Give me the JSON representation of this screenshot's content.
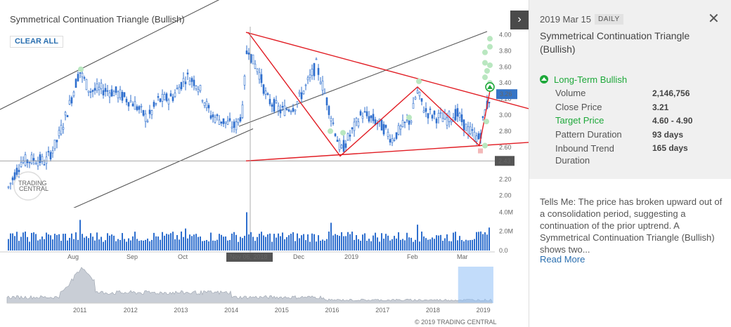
{
  "header": {
    "title": "Symmetrical Continuation Triangle (Bullish)",
    "clear_all": "CLEAR ALL",
    "toggle_icon": "chevron-right-icon"
  },
  "chart_data": {
    "type": "candlestick",
    "price_axis": {
      "ticks": [
        "4.00",
        "3.80",
        "3.60",
        "3.40",
        "3.20",
        "3.00",
        "2.80",
        "2.60",
        "2.40",
        "2.20",
        "2.00"
      ],
      "ylim": [
        1.9,
        4.1
      ]
    },
    "volume_axis": {
      "ticks": [
        "4.0M",
        "2.0M",
        "0.0"
      ],
      "ylim": [
        0,
        4400000
      ]
    },
    "x_ticks": [
      "Aug",
      "Sep",
      "Oct",
      "Nov",
      "Dec",
      "2019",
      "Feb",
      "Mar"
    ],
    "crosshair": {
      "date_label": "Nov 06, 2018",
      "price_label": "2.43",
      "price": 2.43
    },
    "last_price_label": "3.26",
    "last_price": 3.26,
    "triangle_lines": [
      {
        "name": "upper",
        "from": [
          350,
          4.03
        ],
        "to": [
          752,
          3.08
        ]
      },
      {
        "name": "lower",
        "from": [
          350,
          2.43
        ],
        "to": [
          752,
          2.66
        ]
      }
    ],
    "zigzag_prices": [
      4.03,
      2.49,
      3.35,
      2.62,
      3.3
    ],
    "channel_lines": [
      {
        "name": "channel-upper",
        "from": [
          0,
          3.07
        ],
        "to": [
          395,
          4.8
        ]
      },
      {
        "name": "channel-middle",
        "from": [
          340,
          2.86
        ],
        "to": [
          693,
          4.04
        ]
      },
      {
        "name": "channel-lower",
        "from": [
          0,
          1.44
        ],
        "to": [
          360,
          2.83
        ]
      }
    ],
    "navigator": {
      "ticks": [
        "2011",
        "2012",
        "2013",
        "2014",
        "2015",
        "2016",
        "2017",
        "2018",
        "2019"
      ],
      "highlight": [
        2018.5,
        2019.2
      ]
    }
  },
  "copyright": "© 2019 TRADING CENTRAL",
  "watermark": "TRADING CENTRAL",
  "panel": {
    "date": "2019 Mar 15",
    "interval": "DAILY",
    "title": "Symmetrical Continuation Triangle (Bullish)",
    "signal": "Long-Term Bullish",
    "signal_color": "#1ea83a",
    "rows": [
      {
        "label": "Volume",
        "value": "2,146,756"
      },
      {
        "label": "Close Price",
        "value": "3.21"
      },
      {
        "label": "Target Price",
        "value": "4.60 - 4.90"
      },
      {
        "label": "Pattern Duration",
        "value": "93 days"
      },
      {
        "label": "Inbound Trend Duration",
        "value": "165 days"
      }
    ],
    "description": "Tells Me: The price has broken upward out of a consolidation period, suggesting a continuation of the prior uptrend. A Symmetrical Continuation Triangle (Bullish) shows two...",
    "read_more": "Read More",
    "close_icon": "close-icon"
  },
  "colors": {
    "candle": "#2f6fce",
    "pattern": "#e11d24",
    "accent": "#2a6fb0",
    "bullish": "#1ea83a"
  }
}
